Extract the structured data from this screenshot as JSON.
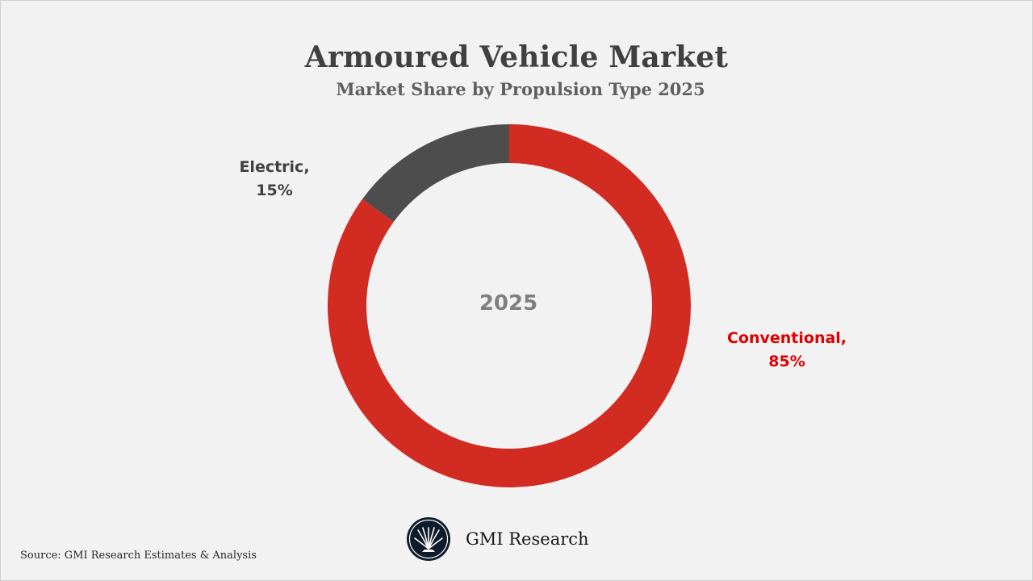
{
  "chart_data": {
    "type": "pie",
    "variant": "donut",
    "title": "Armoured Vehicle Market",
    "subtitle": "Market Share by Propulsion Type 2025",
    "center_label": "2025",
    "slices": [
      {
        "name": "Electric",
        "value": 15,
        "color": "#4d4d4d",
        "label": "Electric,",
        "value_label": "15%",
        "label_color": "#404040"
      },
      {
        "name": "Conventional",
        "value": 85,
        "color": "#d22b22",
        "label": "Conventional,",
        "value_label": "85%",
        "label_color": "#e00000"
      }
    ],
    "start_angle": "12 o'clock",
    "direction": "counter-clockwise for Electric, remainder Conventional"
  },
  "brand": {
    "name": "GMI Research",
    "logo_icon": "gmi-research-logo-icon",
    "logo_color": "#0d1b2a"
  },
  "source": "Source: GMI Research Estimates & Analysis"
}
